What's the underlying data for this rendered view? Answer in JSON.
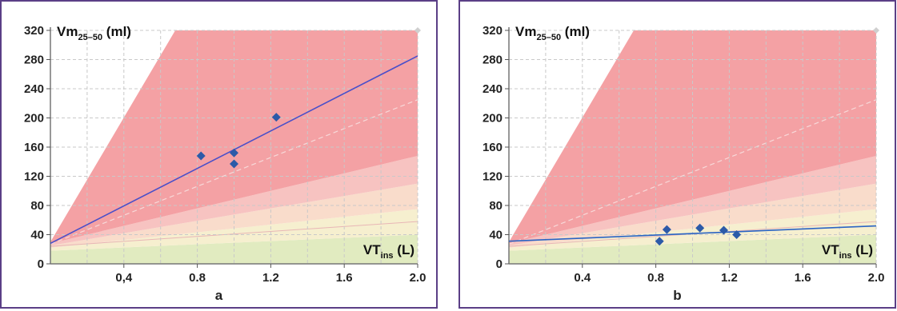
{
  "chart_data": [
    {
      "type": "scatter",
      "panel_label": "a",
      "ylabel": "Vm",
      "ylabel_sub": "25–50",
      "ylabel_unit": "(ml)",
      "xlabel": "VT",
      "xlabel_sub": "ins",
      "xlabel_unit": "(L)",
      "xlim": [
        0.0,
        2.0
      ],
      "ylim": [
        0,
        320
      ],
      "x_ticks": [
        "0,4",
        "0.8",
        "1.2",
        "1.6",
        "2.0"
      ],
      "y_ticks": [
        "0",
        "40",
        "80",
        "120",
        "160",
        "200",
        "240",
        "280",
        "320"
      ],
      "grid": true,
      "points": [
        {
          "x": 0.82,
          "y": 148
        },
        {
          "x": 1.0,
          "y": 152
        },
        {
          "x": 1.0,
          "y": 137
        },
        {
          "x": 1.23,
          "y": 201
        }
      ],
      "regression_line": {
        "x": [
          0.0,
          2.0
        ],
        "y": [
          28,
          285
        ]
      },
      "marker_color": "#2c5aa8",
      "line_color": "#4a4fc9"
    },
    {
      "type": "scatter",
      "panel_label": "b",
      "ylabel": "Vm",
      "ylabel_sub": "25–50",
      "ylabel_unit": "(ml)",
      "xlabel": "VT",
      "xlabel_sub": "ins",
      "xlabel_unit": "(L)",
      "xlim": [
        0.0,
        2.0
      ],
      "ylim": [
        0,
        320
      ],
      "x_ticks": [
        "0.4",
        "0.8",
        "1.2",
        "1.6",
        "2.0"
      ],
      "y_ticks": [
        "0",
        "40",
        "80",
        "120",
        "160",
        "200",
        "240",
        "280",
        "320"
      ],
      "grid": true,
      "points": [
        {
          "x": 0.82,
          "y": 31
        },
        {
          "x": 0.86,
          "y": 47
        },
        {
          "x": 1.04,
          "y": 49
        },
        {
          "x": 1.17,
          "y": 46
        },
        {
          "x": 1.24,
          "y": 40
        }
      ],
      "regression_line": {
        "x": [
          0.0,
          2.0
        ],
        "y": [
          31,
          52
        ]
      },
      "marker_color": "#2c5aa8",
      "line_color": "#2a64c4"
    }
  ],
  "zone_colors": {
    "red": "#f4a1a4",
    "pink": "#f7c3c1",
    "peach": "#f9dccb",
    "cream": "#f6efcf",
    "green": "#e1ebc0"
  }
}
